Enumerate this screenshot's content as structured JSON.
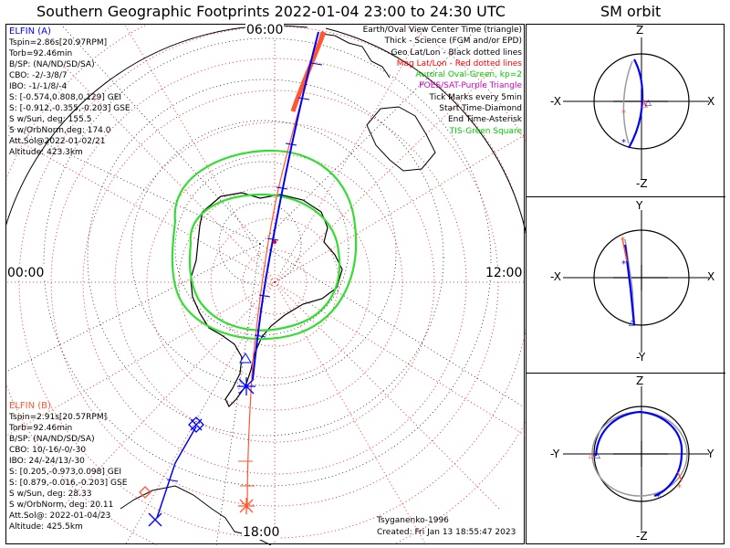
{
  "title": "Southern Geographic Footprints 2022-01-04 23:00 to 24:30 UTC",
  "sm_title": "SM orbit",
  "mlt_labels": {
    "top": "06:00",
    "left": "00:00",
    "right": "12:00",
    "bottom": "18:00"
  },
  "elfin_a": {
    "header": "ELFIN (A)",
    "lines": [
      "Tspin=2.86s[20.97RPM]",
      "Torb=92.46min",
      "B/SP: (NA/ND/SD/SA)",
      "CBO: -2/-3/8/7",
      "IBO: -1/-1/8/-4",
      "S: [-0.574,0.808,0.129] GEI",
      "S: [-0.912,-0.355,-0.203] GSE",
      "S w/Sun, deg: 155.5",
      "S w/OrbNorm,deg: 174.0",
      "Att.Sol@2022-01-02/21",
      "Altitude: 423.3km"
    ],
    "color": "#0000ff"
  },
  "elfin_b": {
    "header": "ELFIN (B)",
    "lines": [
      "Tspin=2.91s[20.57RPM]",
      "Torb=92.46min",
      "B/SP: (NA/ND/SD/SA)",
      "CBO: 10/-16/-0/-30",
      "IBO: 24/-24/13/-30",
      "S: [0.205,-0.973,0.098] GEI",
      "S: [0.879,-0.016,-0.203] GSE",
      "S w/Sun, deg: 28.33",
      "S w/OrbNorm, deg: 20.11",
      "Att.Sol@: 2022-01-04/23",
      "Altitude: 425.5km"
    ],
    "color": "#ff5733"
  },
  "legend": [
    {
      "text": "Earth/Oval View Center Time (triangle)",
      "color": "#000000"
    },
    {
      "text": "Thick - Science (FGM and/or EPD)",
      "color": "#000000"
    },
    {
      "text": "Geo Lat/Lon - Black dotted lines",
      "color": "#000000"
    },
    {
      "text": "Mag Lat/Lon - Red dotted lines",
      "color": "#ff0000"
    },
    {
      "text": "Auroral Oval-Green, kp=2",
      "color": "#00cc00"
    },
    {
      "text": "POES/SAT-Purple Triangle",
      "color": "#cc00cc"
    },
    {
      "text": "Tick Marks every 5min",
      "color": "#000000"
    },
    {
      "text": "Start Time-Diamond",
      "color": "#000000"
    },
    {
      "text": "End Time-Asterisk",
      "color": "#000000"
    },
    {
      "text": "TIS-Green Square",
      "color": "#00cc00"
    }
  ],
  "credit": {
    "author": "Tsyganenko-1996",
    "created": "Created: Fri Jan 13 18:55:47 2023"
  },
  "sm_panels": [
    {
      "top": "Z",
      "bottom": "-Z",
      "left": "-X",
      "right": "X"
    },
    {
      "top": "Y",
      "bottom": "-Y",
      "left": "-X",
      "right": "X"
    },
    {
      "top": "Z",
      "bottom": "-Z",
      "left": "-Y",
      "right": "Y"
    }
  ],
  "colors": {
    "geo_grid": "#000000",
    "mag_grid": "#ff0000",
    "oval": "#33dd33",
    "track_a": "#0000ff",
    "track_b": "#ff5733"
  }
}
